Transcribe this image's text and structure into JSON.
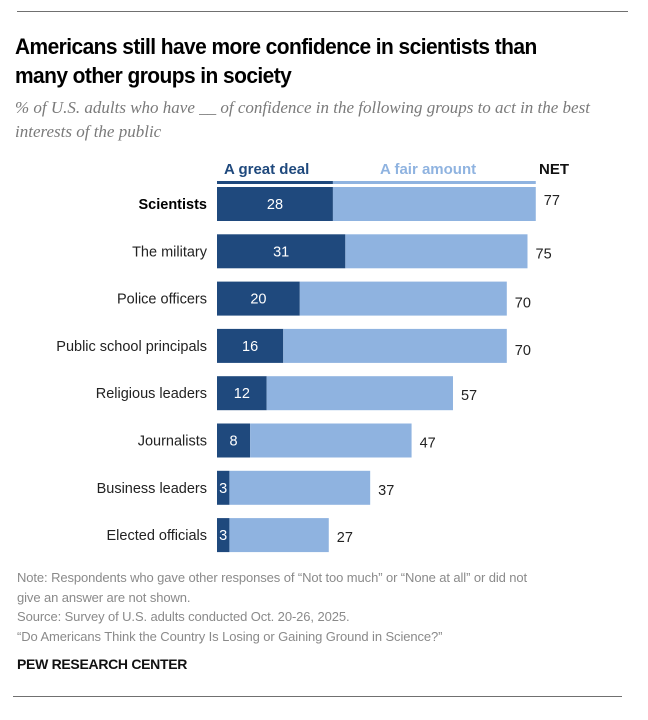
{
  "header": {
    "title": "Americans still have more confidence in scientists than many other groups in society",
    "subtitle": "% of U.S. adults who have __ of confidence in the following groups to act in the best interests of the public"
  },
  "legend": {
    "great_deal": "A great deal",
    "fair_amount": "A fair amount",
    "net": "NET"
  },
  "colors": {
    "great_deal": "#1f497d",
    "fair_amount": "#8fb3e0"
  },
  "chart_data": {
    "type": "bar",
    "orientation": "horizontal",
    "stacked": true,
    "title": "Americans still have more confidence in scientists than many other groups in society",
    "subtitle": "% of U.S. adults who have __ of confidence in the following groups to act in the best interests of the public",
    "xlabel": "",
    "ylabel": "",
    "grid": false,
    "legend_placement": "top",
    "categories": [
      "Scientists",
      "The military",
      "Police officers",
      "Public school principals",
      "Religious leaders",
      "Journalists",
      "Business leaders",
      "Elected officials"
    ],
    "highlighted_category": "Scientists",
    "series": [
      {
        "name": "A great deal",
        "values": [
          28,
          31,
          20,
          16,
          12,
          8,
          3,
          3
        ],
        "labeled": true
      },
      {
        "name": "A fair amount",
        "values": [
          49,
          44,
          50,
          54,
          45,
          39,
          34,
          24
        ],
        "labeled": false
      }
    ],
    "net": {
      "name": "NET",
      "values": [
        77,
        75,
        70,
        70,
        57,
        47,
        37,
        27
      ]
    },
    "xlim": [
      0,
      100
    ]
  },
  "footer": {
    "note_line1": "Note: Respondents who gave other responses of “Not too much” or “None at all” or did not",
    "note_line2": "give an answer are not shown.",
    "source": "Source: Survey of U.S. adults conducted Oct. 20-26, 2025.",
    "report": "“Do Americans Think the Country Is Losing or Gaining Ground in Science?”",
    "brand": "PEW RESEARCH CENTER"
  }
}
